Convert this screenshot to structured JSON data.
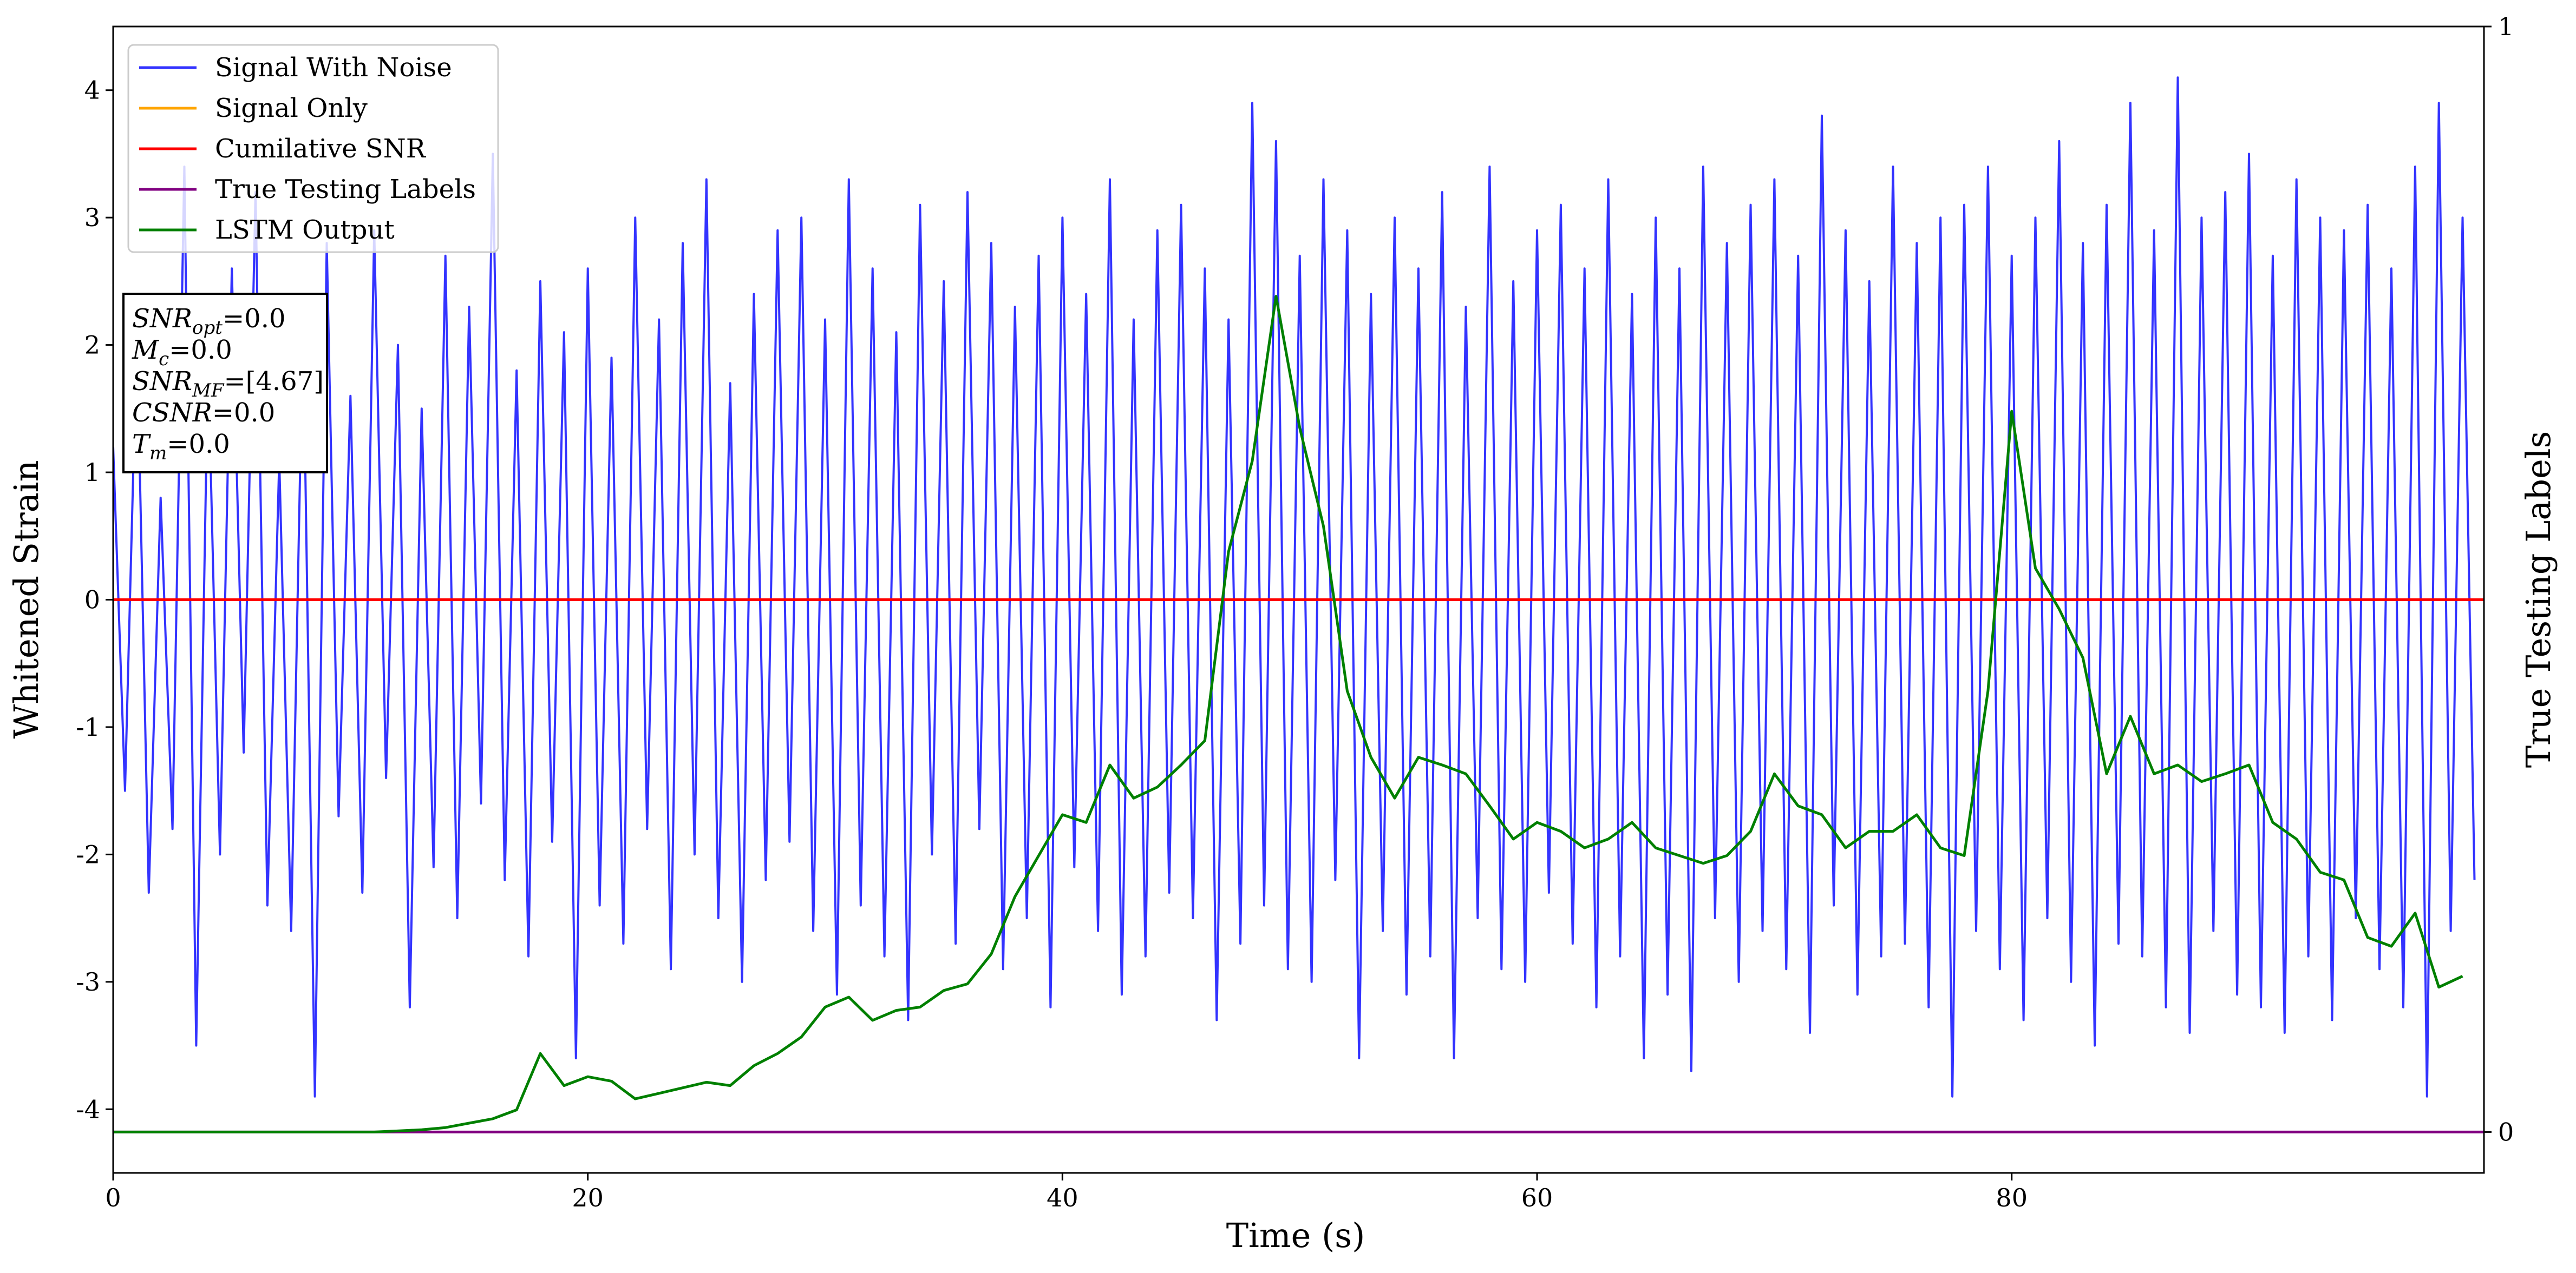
{
  "chart_data": {
    "type": "line",
    "xlabel": "Time (s)",
    "ylabel": "Whitened Strain",
    "y2label": "True Testing Labels",
    "xlim": [
      0,
      99.9
    ],
    "ylim": [
      -4.5,
      4.5
    ],
    "y2lim": [
      -0.037,
      1
    ],
    "xticks": [
      0,
      20,
      40,
      60,
      80
    ],
    "yticks": [
      -4,
      -3,
      -2,
      -1,
      0,
      1,
      2,
      3,
      4
    ],
    "y2ticks": [
      0,
      1
    ],
    "legend": "upper left",
    "annotation": [
      {
        "symbol": "SNR",
        "subscript": "opt",
        "text": "=0.0"
      },
      {
        "symbol": "M",
        "subscript": "c",
        "text": "=0.0"
      },
      {
        "symbol": "SNR",
        "subscript": "MF",
        "text": "=[4.67]"
      },
      {
        "symbol": "CSNR",
        "text": "=0.0"
      },
      {
        "symbol": "T",
        "subscript": "m",
        "text": "=0.0"
      }
    ],
    "series": [
      {
        "name": "Signal With Noise",
        "color": "#3333ff",
        "x": [
          0,
          0.5,
          1,
          1.5,
          2,
          2.5,
          3,
          3.5,
          4,
          4.5,
          5,
          5.5,
          6,
          6.5,
          7,
          7.5,
          8,
          8.5,
          9,
          9.5,
          10,
          10.5,
          11,
          11.5,
          12,
          12.5,
          13,
          13.5,
          14,
          14.5,
          15,
          15.5,
          16,
          16.5,
          17,
          17.5,
          18,
          18.5,
          19,
          19.5,
          20,
          20.5,
          21,
          21.5,
          22,
          22.5,
          23,
          23.5,
          24,
          24.5,
          25,
          25.5,
          26,
          26.5,
          27,
          27.5,
          28,
          28.5,
          29,
          29.5,
          30,
          30.5,
          31,
          31.5,
          32,
          32.5,
          33,
          33.5,
          34,
          34.5,
          35,
          35.5,
          36,
          36.5,
          37,
          37.5,
          38,
          38.5,
          39,
          39.5,
          40,
          40.5,
          41,
          41.5,
          42,
          42.5,
          43,
          43.5,
          44,
          44.5,
          45,
          45.5,
          46,
          46.5,
          47,
          47.5,
          48,
          48.5,
          49,
          49.5,
          50,
          50.5,
          51,
          51.5,
          52,
          52.5,
          53,
          53.5,
          54,
          54.5,
          55,
          55.5,
          56,
          56.5,
          57,
          57.5,
          58,
          58.5,
          59,
          59.5,
          60,
          60.5,
          61,
          61.5,
          62,
          62.5,
          63,
          63.5,
          64,
          64.5,
          65,
          65.5,
          66,
          66.5,
          67,
          67.5,
          68,
          68.5,
          69,
          69.5,
          70,
          70.5,
          71,
          71.5,
          72,
          72.5,
          73,
          73.5,
          74,
          74.5,
          75,
          75.5,
          76,
          76.5,
          77,
          77.5,
          78,
          78.5,
          79,
          79.5,
          80,
          80.5,
          81,
          81.5,
          82,
          82.5,
          83,
          83.5,
          84,
          84.5,
          85,
          85.5,
          86,
          86.5,
          87,
          87.5,
          88,
          88.5,
          89,
          89.5,
          90,
          90.5,
          91,
          91.5,
          92,
          92.5,
          93,
          93.5,
          94,
          94.5,
          95,
          95.5,
          96,
          96.5,
          97,
          97.5,
          98,
          98.5,
          99,
          99.5
        ],
        "values": [
          1.2,
          -1.5,
          2.1,
          -2.3,
          0.8,
          -1.8,
          3.4,
          -3.5,
          1.9,
          -2.0,
          2.6,
          -1.2,
          3.2,
          -2.4,
          1.1,
          -2.6,
          2.2,
          -3.9,
          2.8,
          -1.7,
          1.6,
          -2.3,
          2.9,
          -1.4,
          2.0,
          -3.2,
          1.5,
          -2.1,
          2.7,
          -2.5,
          2.3,
          -1.6,
          3.5,
          -2.2,
          1.8,
          -2.8,
          2.5,
          -1.9,
          2.1,
          -3.6,
          2.6,
          -2.4,
          1.9,
          -2.7,
          3.0,
          -1.8,
          2.2,
          -2.9,
          2.8,
          -2.0,
          3.3,
          -2.5,
          1.7,
          -3.0,
          2.4,
          -2.2,
          2.9,
          -1.9,
          3.0,
          -2.6,
          2.2,
          -3.1,
          3.3,
          -2.4,
          2.6,
          -2.8,
          2.1,
          -3.3,
          3.1,
          -2.0,
          2.5,
          -2.7,
          3.2,
          -1.8,
          2.8,
          -2.9,
          2.3,
          -2.5,
          2.7,
          -3.2,
          3.0,
          -2.1,
          2.4,
          -2.6,
          3.3,
          -3.1,
          2.2,
          -2.8,
          2.9,
          -2.3,
          3.1,
          -2.5,
          2.6,
          -3.3,
          2.2,
          -2.7,
          3.9,
          -2.4,
          3.6,
          -2.9,
          2.7,
          -3.0,
          3.3,
          -2.2,
          2.9,
          -3.6,
          2.4,
          -2.6,
          3.0,
          -3.1,
          2.6,
          -2.8,
          3.2,
          -3.6,
          2.3,
          -2.5,
          3.4,
          -2.9,
          2.5,
          -3.0,
          2.9,
          -2.3,
          3.1,
          -2.7,
          2.6,
          -3.2,
          3.3,
          -2.8,
          2.4,
          -3.6,
          3.0,
          -3.1,
          2.6,
          -3.7,
          3.4,
          -2.5,
          2.8,
          -3.0,
          3.1,
          -2.6,
          3.3,
          -2.9,
          2.7,
          -3.4,
          3.8,
          -2.4,
          2.9,
          -3.1,
          2.5,
          -2.8,
          3.4,
          -2.7,
          2.8,
          -3.2,
          3.0,
          -3.9,
          3.1,
          -2.6,
          3.4,
          -2.9,
          2.7,
          -3.3,
          3.0,
          -2.5,
          3.6,
          -3.0,
          2.8,
          -3.5,
          3.1,
          -2.7,
          3.9,
          -2.8,
          2.9,
          -3.2,
          4.1,
          -3.4,
          3.0,
          -2.6,
          3.2,
          -3.1,
          3.5,
          -3.2,
          2.7,
          -3.4,
          3.3,
          -2.8,
          3.0,
          -3.3,
          2.9,
          -2.5,
          3.1,
          -2.9,
          2.6,
          -3.2,
          3.4,
          -3.9,
          3.9,
          -2.6,
          3.0,
          -2.2
        ]
      },
      {
        "name": "Signal Only",
        "color": "#ffa500",
        "x": [
          0,
          99.9
        ],
        "values": [
          0,
          0
        ]
      },
      {
        "name": "Cumilative SNR",
        "color": "#ff0000",
        "x": [
          0,
          99.9
        ],
        "values": [
          0,
          0
        ]
      },
      {
        "name": "True Testing Labels",
        "color": "#800080",
        "axis": "y2",
        "x": [
          0,
          99.9
        ],
        "values": [
          0,
          0
        ]
      },
      {
        "name": "LSTM Output",
        "color": "#008000",
        "axis": "y2",
        "x": [
          0,
          1,
          2,
          3,
          4,
          5,
          6,
          7,
          8,
          9,
          10,
          11,
          12,
          13,
          14,
          15,
          16,
          17,
          18,
          19,
          20,
          21,
          22,
          23,
          24,
          25,
          26,
          27,
          28,
          29,
          30,
          31,
          32,
          33,
          34,
          35,
          36,
          37,
          38,
          39,
          40,
          41,
          42,
          43,
          44,
          45,
          46,
          47,
          48,
          49,
          50,
          51,
          52,
          53,
          54,
          55,
          56,
          57,
          58,
          59,
          60,
          61,
          62,
          63,
          64,
          65,
          66,
          67,
          68,
          69,
          70,
          71,
          72,
          73,
          74,
          75,
          76,
          77,
          78,
          79,
          80,
          81,
          82,
          83,
          84,
          85,
          86,
          87,
          88,
          89,
          90,
          91,
          92,
          93,
          94,
          95,
          96,
          97,
          98,
          99
        ],
        "values": [
          0,
          0,
          0,
          0,
          0,
          0,
          0,
          0,
          0,
          0,
          0,
          0,
          0.001,
          0.002,
          0.004,
          0.008,
          0.012,
          0.02,
          0.071,
          0.042,
          0.05,
          0.046,
          0.03,
          0.035,
          0.04,
          0.045,
          0.042,
          0.06,
          0.071,
          0.086,
          0.113,
          0.122,
          0.101,
          0.11,
          0.113,
          0.128,
          0.134,
          0.161,
          0.213,
          0.25,
          0.287,
          0.28,
          0.332,
          0.302,
          0.312,
          0.332,
          0.354,
          0.525,
          0.607,
          0.756,
          0.637,
          0.548,
          0.399,
          0.339,
          0.302,
          0.339,
          0.332,
          0.324,
          0.295,
          0.265,
          0.28,
          0.272,
          0.257,
          0.265,
          0.28,
          0.257,
          0.25,
          0.243,
          0.25,
          0.272,
          0.324,
          0.295,
          0.287,
          0.257,
          0.272,
          0.272,
          0.287,
          0.257,
          0.25,
          0.399,
          0.652,
          0.51,
          0.473,
          0.429,
          0.324,
          0.376,
          0.324,
          0.332,
          0.317,
          0.324,
          0.332,
          0.28,
          0.265,
          0.235,
          0.228,
          0.176,
          0.168,
          0.198,
          0.131,
          0.141
        ]
      }
    ]
  }
}
